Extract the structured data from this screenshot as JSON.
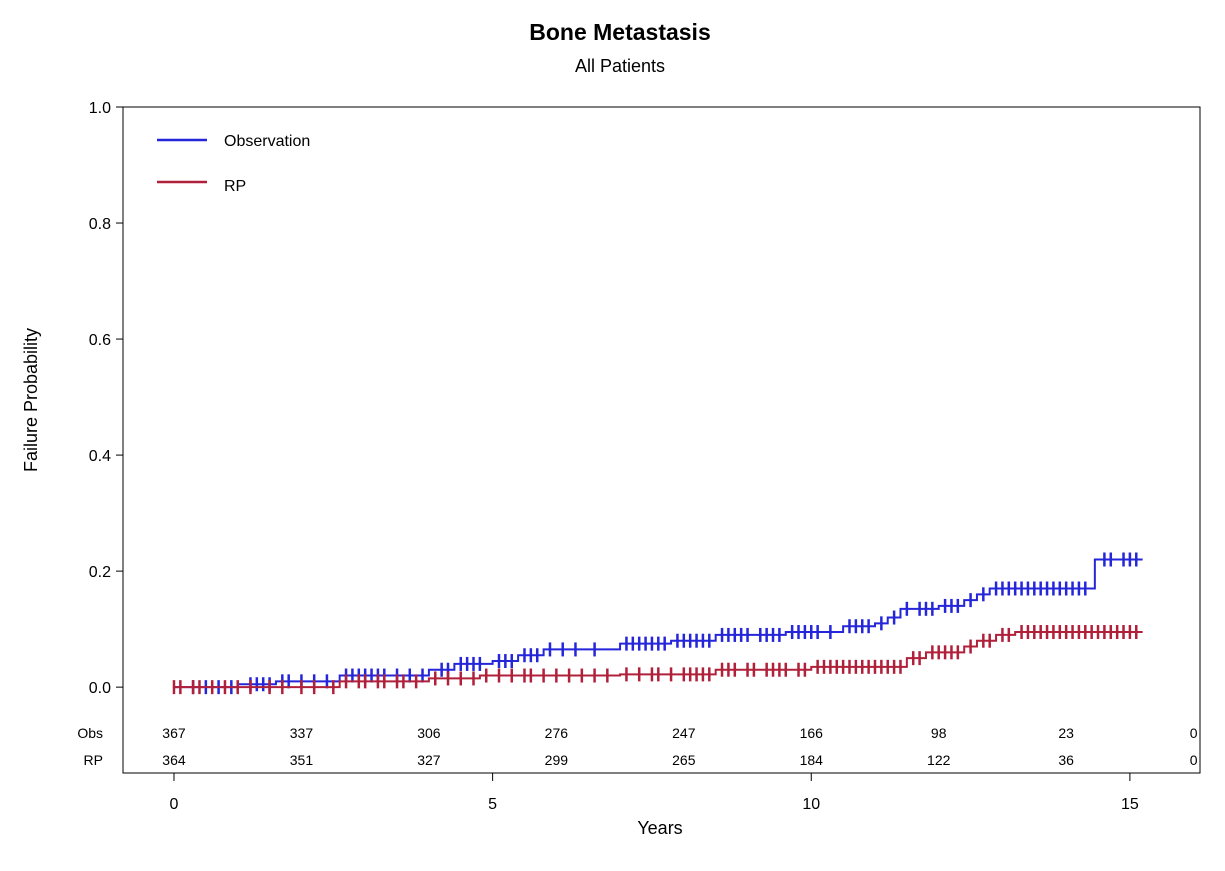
{
  "chart_data": {
    "type": "line",
    "title": "Bone Metastasis",
    "subtitle": "All Patients",
    "xlabel": "Years",
    "ylabel": "Failure Probability",
    "xlim": [
      -0.8,
      16.1
    ],
    "ylim": [
      -0.148,
      1.0
    ],
    "x_ticks": [
      0,
      5,
      10,
      15
    ],
    "y_ticks": [
      0.0,
      0.2,
      0.4,
      0.6,
      0.8,
      1.0
    ],
    "y_tick_labels": [
      "0.0",
      "0.2",
      "0.4",
      "0.6",
      "0.8",
      "1.0"
    ],
    "grid": false,
    "legend_position": "top-left",
    "series": [
      {
        "name": "Observation",
        "color": "#2525d9",
        "steps": [
          [
            0,
            0
          ],
          [
            1.0,
            0.005
          ],
          [
            1.6,
            0.01
          ],
          [
            2.6,
            0.02
          ],
          [
            4.0,
            0.03
          ],
          [
            4.4,
            0.04
          ],
          [
            5.0,
            0.045
          ],
          [
            5.4,
            0.055
          ],
          [
            5.8,
            0.065
          ],
          [
            7.0,
            0.075
          ],
          [
            7.8,
            0.08
          ],
          [
            8.5,
            0.09
          ],
          [
            9.6,
            0.095
          ],
          [
            10.5,
            0.105
          ],
          [
            11.0,
            0.11
          ],
          [
            11.2,
            0.12
          ],
          [
            11.4,
            0.135
          ],
          [
            12.0,
            0.14
          ],
          [
            12.4,
            0.15
          ],
          [
            12.6,
            0.16
          ],
          [
            12.8,
            0.17
          ],
          [
            14.45,
            0.22
          ],
          [
            15.2,
            0.22
          ]
        ],
        "censor": [
          0.3,
          0.5,
          0.7,
          0.9,
          1.2,
          1.3,
          1.4,
          1.5,
          1.7,
          1.8,
          2.0,
          2.2,
          2.4,
          2.7,
          2.8,
          2.9,
          3.0,
          3.1,
          3.2,
          3.3,
          3.5,
          3.7,
          3.9,
          4.2,
          4.3,
          4.5,
          4.6,
          4.7,
          4.8,
          5.1,
          5.2,
          5.3,
          5.5,
          5.6,
          5.7,
          5.9,
          6.1,
          6.3,
          6.6,
          7.1,
          7.2,
          7.3,
          7.4,
          7.5,
          7.6,
          7.7,
          7.9,
          8.0,
          8.1,
          8.2,
          8.3,
          8.4,
          8.6,
          8.7,
          8.8,
          8.9,
          9.0,
          9.2,
          9.3,
          9.4,
          9.5,
          9.7,
          9.8,
          9.9,
          10.0,
          10.1,
          10.3,
          10.6,
          10.7,
          10.8,
          10.9,
          11.1,
          11.3,
          11.5,
          11.7,
          11.8,
          11.9,
          12.1,
          12.2,
          12.3,
          12.5,
          12.7,
          12.9,
          13.0,
          13.1,
          13.2,
          13.3,
          13.4,
          13.5,
          13.6,
          13.7,
          13.8,
          13.9,
          14.0,
          14.1,
          14.2,
          14.3,
          14.6,
          14.7,
          14.9,
          15.0,
          15.1
        ]
      },
      {
        "name": "RP",
        "color": "#b0203a",
        "steps": [
          [
            0,
            0
          ],
          [
            2.6,
            0.01
          ],
          [
            4.0,
            0.015
          ],
          [
            4.8,
            0.02
          ],
          [
            7.0,
            0.022
          ],
          [
            8.5,
            0.03
          ],
          [
            10.0,
            0.035
          ],
          [
            11.5,
            0.05
          ],
          [
            11.8,
            0.06
          ],
          [
            12.4,
            0.07
          ],
          [
            12.6,
            0.08
          ],
          [
            12.9,
            0.09
          ],
          [
            13.2,
            0.095
          ],
          [
            15.2,
            0.095
          ]
        ],
        "censor": [
          0.0,
          0.1,
          0.3,
          0.4,
          0.6,
          0.8,
          1.0,
          1.2,
          1.5,
          1.7,
          2.0,
          2.2,
          2.5,
          2.7,
          2.9,
          3.0,
          3.2,
          3.3,
          3.5,
          3.6,
          3.8,
          4.1,
          4.3,
          4.5,
          4.7,
          4.9,
          5.1,
          5.3,
          5.5,
          5.6,
          5.8,
          6.0,
          6.2,
          6.4,
          6.6,
          6.8,
          7.1,
          7.3,
          7.5,
          7.6,
          7.8,
          8.0,
          8.1,
          8.2,
          8.3,
          8.4,
          8.6,
          8.7,
          8.8,
          9.0,
          9.1,
          9.3,
          9.4,
          9.5,
          9.6,
          9.8,
          9.9,
          10.1,
          10.2,
          10.3,
          10.4,
          10.5,
          10.6,
          10.7,
          10.8,
          10.9,
          11.0,
          11.1,
          11.2,
          11.3,
          11.4,
          11.6,
          11.7,
          11.9,
          12.0,
          12.1,
          12.2,
          12.3,
          12.5,
          12.7,
          12.8,
          13.0,
          13.1,
          13.3,
          13.4,
          13.5,
          13.6,
          13.7,
          13.8,
          13.9,
          14.0,
          14.1,
          14.2,
          14.3,
          14.4,
          14.5,
          14.6,
          14.7,
          14.8,
          14.9,
          15.0,
          15.1
        ]
      }
    ],
    "risk_table": {
      "times": [
        0,
        2,
        4,
        6,
        8,
        10,
        12,
        14,
        16
      ],
      "rows": [
        {
          "label": "Obs",
          "values": [
            "367",
            "337",
            "306",
            "276",
            "247",
            "166",
            "98",
            "23",
            "0"
          ]
        },
        {
          "label": "RP",
          "values": [
            "364",
            "351",
            "327",
            "299",
            "265",
            "184",
            "122",
            "36",
            "0"
          ]
        }
      ]
    }
  }
}
